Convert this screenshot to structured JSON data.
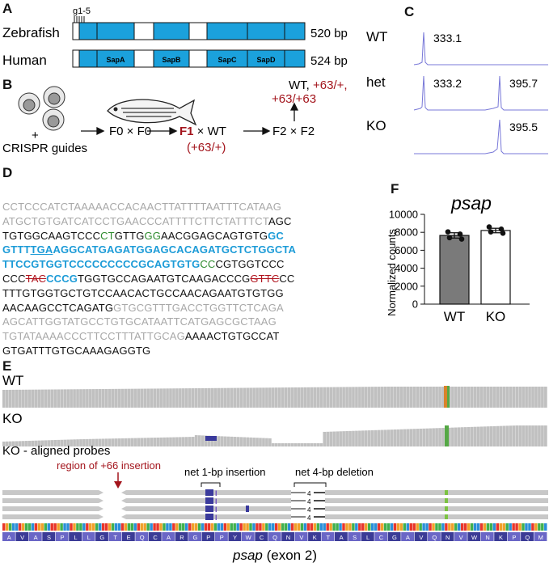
{
  "panels": {
    "A": "A",
    "B": "B",
    "C": "C",
    "D": "D",
    "E": "E",
    "F": "F"
  },
  "panel_a": {
    "guide_label": "g1-5",
    "zebrafish": {
      "name": "Zebrafish",
      "size": "520 bp"
    },
    "human": {
      "name": "Human",
      "size": "524 bp",
      "domains": [
        "SapA",
        "SapB",
        "SapC",
        "SapD"
      ]
    },
    "colors": {
      "domain_fill": "#1ba1dc",
      "linker_fill": "#ffffff"
    }
  },
  "panel_b": {
    "plus": "+",
    "guides": "CRISPR guides",
    "f0": "F0 × F0",
    "f1": "F1",
    "f1_cross": " × WT",
    "f1_genotype": "(+63/+)",
    "f2": "F2 × F2",
    "outcome_wt": "WT, ",
    "outcome_het": "+63/+,",
    "outcome_hom": "+63/+63"
  },
  "panel_c": {
    "traces": [
      {
        "label": "WT",
        "peaks": [
          "333.1"
        ]
      },
      {
        "label": "het",
        "peaks": [
          "333.2",
          "395.7"
        ]
      },
      {
        "label": "KO",
        "peaks": [
          "395.5"
        ]
      }
    ],
    "trace_color": "#7878d8"
  },
  "panel_d": {
    "lines": [
      [
        {
          "t": "CCTCCCATCTAAAAACCACAACTTATTTTAATTTCATAAG",
          "c": "gray"
        }
      ],
      [
        {
          "t": "ATGCTGTGATCATCCTGAACCCATTTTCTTCTATTTCT",
          "c": "gray"
        },
        {
          "t": "AGC",
          "c": ""
        }
      ],
      [
        {
          "t": "TGTGGCAAGTCCC",
          "c": ""
        },
        {
          "t": "CT",
          "c": "green"
        },
        {
          "t": "GTTG",
          "c": ""
        },
        {
          "t": "GG",
          "c": "green"
        },
        {
          "t": "AACGGAGCAGTGTG",
          "c": ""
        },
        {
          "t": "GC",
          "c": "blue"
        }
      ],
      [
        {
          "t": "GTTT",
          "c": "blue"
        },
        {
          "t": "TGA",
          "c": "blue under"
        },
        {
          "t": "AGGCATGAGATGGAGCACAGATGCTCTGGCTA",
          "c": "blue"
        }
      ],
      [
        {
          "t": "TTCCGTGGTCCCCCCCCCGCAGTGTG",
          "c": "blue"
        },
        {
          "t": "CC",
          "c": "green"
        },
        {
          "t": "CGTGGTCCC",
          "c": ""
        }
      ],
      [
        {
          "t": "CCC",
          "c": ""
        },
        {
          "t": "TAC",
          "c": "strike"
        },
        {
          "t": "CCCG",
          "c": "blue"
        },
        {
          "t": "TGGTGCCAGAATGTCAAGACCCG",
          "c": ""
        },
        {
          "t": "GTTC",
          "c": "strike"
        },
        {
          "t": "CC",
          "c": ""
        }
      ],
      [
        {
          "t": "TTTGTGGTGCTGTCCAACACTGCCAACAGAATGTGTGG",
          "c": ""
        }
      ],
      [
        {
          "t": "AACAAGCCTCAGATG",
          "c": ""
        },
        {
          "t": "GTGCGTTTGACCTGGTTCTCAGA",
          "c": "gray"
        }
      ],
      [
        {
          "t": "AGCATTGGTATGCCTGTGCATAATTCATGAGCGCTAAG",
          "c": "gray"
        }
      ],
      [
        {
          "t": "TGTATAAAACCCTTCCTTTATTGCAG",
          "c": "gray"
        },
        {
          "t": "AAAACTGTGCCAT",
          "c": ""
        }
      ],
      [
        {
          "t": "GTGATTTGTGCAAAGAGGTG",
          "c": ""
        }
      ]
    ]
  },
  "panel_e": {
    "wt": "WT",
    "ko": "KO",
    "probes_title": "KO - aligned probes",
    "insertion_region": "region of +66 insertion",
    "net_insertion": "net 1-bp insertion",
    "net_deletion": "net 4-bp deletion",
    "deletion_mark": "4",
    "insertion_mark": "I",
    "amino_acids": [
      "A",
      "V",
      "A",
      "S",
      "P",
      "L",
      "L",
      "G",
      "T",
      "E",
      "Q",
      "C",
      "A",
      "R",
      "G",
      "P",
      "P",
      "Y",
      "W",
      "C",
      "Q",
      "N",
      "V",
      "K",
      "T",
      "A",
      "S",
      "L",
      "C",
      "G",
      "A",
      "V",
      "Q",
      "N",
      "V",
      "W",
      "N",
      "K",
      "P",
      "Q",
      "M"
    ],
    "gene_label": "psap",
    "exon_label": " (exon 2)",
    "colors": {
      "coverage": "#c0c0c0",
      "insertion": "#3a3a9c",
      "snp_orange": "#d9822b",
      "snp_green": "#55a845"
    }
  },
  "chart_data": {
    "type": "bar",
    "title": "psap",
    "ylabel": "Normalized counts",
    "categories": [
      "WT",
      "KO"
    ],
    "values": [
      7650,
      8200
    ],
    "errors": [
      300,
      250
    ],
    "points": [
      [
        8050,
        7800,
        7400,
        7250
      ],
      [
        8600,
        8350,
        8050,
        7900
      ]
    ],
    "ylim": [
      0,
      10000
    ],
    "yticks": [
      "0",
      "2000",
      "4000",
      "6000",
      "8000",
      "10000"
    ],
    "colors": [
      "#7a7a7a",
      "#ffffff"
    ]
  }
}
